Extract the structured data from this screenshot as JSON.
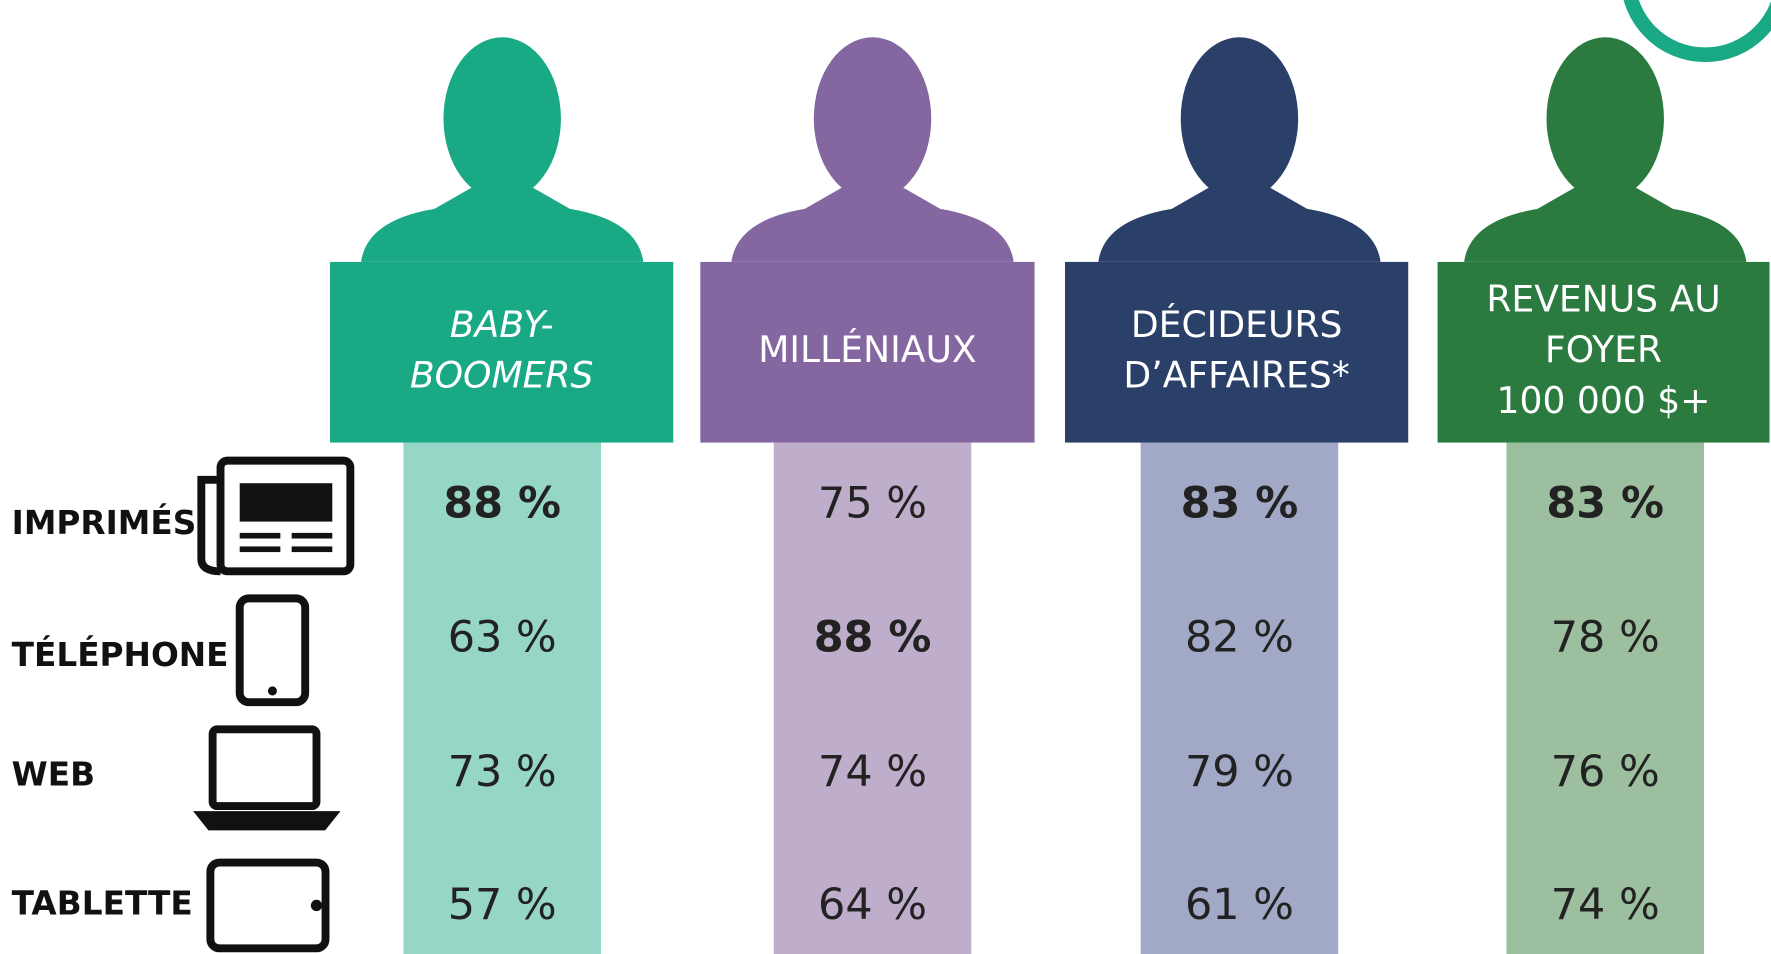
{
  "columns": [
    {
      "title": [
        "BABY-",
        "BOOMERS"
      ],
      "italic": true
    },
    {
      "title": [
        "MILLÉNIAUX"
      ],
      "italic": false
    },
    {
      "title": [
        "DÉCIDEURS",
        "D’AFFAIRES*"
      ],
      "italic": false
    },
    {
      "title": [
        "REVENUS AU",
        "FOYER",
        "100 000 $+"
      ],
      "italic": false
    }
  ],
  "rows": [
    {
      "label": "IMPRIMÉS",
      "cells": [
        {
          "text": "88 %",
          "bold": true
        },
        {
          "text": "75 %",
          "bold": false
        },
        {
          "text": "83 %",
          "bold": true
        },
        {
          "text": "83 %",
          "bold": true
        }
      ]
    },
    {
      "label": "TÉLÉPHONE",
      "cells": [
        {
          "text": "63 %",
          "bold": false
        },
        {
          "text": "88 %",
          "bold": true
        },
        {
          "text": "82 %",
          "bold": false
        },
        {
          "text": "78 %",
          "bold": false
        }
      ]
    },
    {
      "label": "WEB",
      "cells": [
        {
          "text": "73 %",
          "bold": false
        },
        {
          "text": "74 %",
          "bold": false
        },
        {
          "text": "79 %",
          "bold": false
        },
        {
          "text": "76 %",
          "bold": false
        }
      ]
    },
    {
      "label": "TABLETTE",
      "cells": [
        {
          "text": "57 %",
          "bold": false
        },
        {
          "text": "64 %",
          "bold": false
        },
        {
          "text": "61 %",
          "bold": false
        },
        {
          "text": "74 %",
          "bold": false
        }
      ]
    }
  ]
}
